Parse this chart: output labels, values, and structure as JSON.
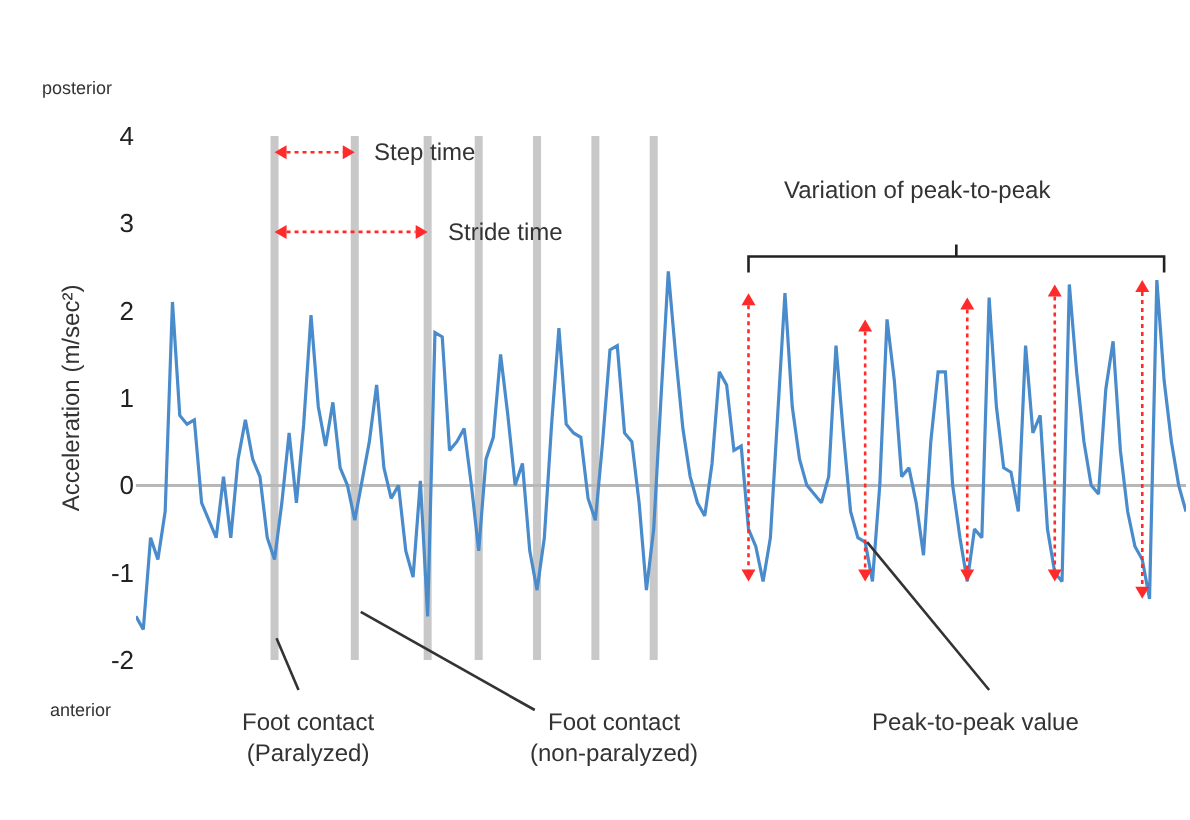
{
  "chart_data": {
    "type": "line",
    "ylabel": "Acceleration (m/sec²)",
    "categories": [
      null,
      null,
      null,
      null,
      null,
      null,
      null,
      null,
      null,
      null,
      null,
      null,
      null,
      null,
      null,
      null,
      null,
      null,
      null,
      null,
      null,
      null,
      null,
      null,
      null,
      null,
      null,
      null,
      null,
      null,
      null,
      null,
      null,
      null,
      null,
      null,
      null,
      null,
      null,
      null,
      null,
      null,
      null,
      null,
      null,
      null,
      null,
      null,
      null,
      null,
      null,
      null,
      null,
      null,
      null,
      null,
      null,
      null,
      null,
      null,
      null,
      null,
      null,
      null,
      null,
      null,
      null,
      null,
      null,
      null,
      null,
      null,
      null,
      null,
      null,
      null,
      null,
      null,
      null,
      null,
      null,
      null,
      null,
      null,
      null,
      null,
      null,
      null,
      null,
      null,
      null,
      null,
      null,
      null,
      null,
      null,
      null,
      null,
      null,
      null,
      null,
      null,
      null,
      null,
      null,
      null,
      null,
      null,
      null,
      null,
      null,
      null,
      null,
      null,
      null,
      null,
      null,
      null,
      null,
      null,
      null,
      null,
      null,
      null,
      null,
      null,
      null,
      null,
      null,
      null,
      null,
      null,
      null,
      null,
      null,
      null,
      null,
      null,
      null,
      null,
      null,
      null,
      null,
      null,
      null
    ],
    "series": [
      {
        "color": "#4a8ccb",
        "values": [
          -1.5,
          -1.65,
          -0.6,
          -0.85,
          -0.3,
          2.1,
          0.8,
          0.7,
          0.75,
          -0.2,
          -0.4,
          -0.6,
          0.1,
          -0.6,
          0.3,
          0.75,
          0.3,
          0.1,
          -0.6,
          -0.85,
          -0.2,
          0.6,
          -0.2,
          0.7,
          1.95,
          0.9,
          0.45,
          0.95,
          0.2,
          0.0,
          -0.4,
          0.05,
          0.5,
          1.15,
          0.2,
          -0.15,
          0.0,
          -0.75,
          -1.05,
          0.05,
          -1.5,
          1.75,
          1.7,
          0.4,
          0.5,
          0.65,
          0.0,
          -0.75,
          0.3,
          0.55,
          1.5,
          0.8,
          0.0,
          0.25,
          -0.75,
          -1.2,
          -0.6,
          0.7,
          1.8,
          0.7,
          0.6,
          0.55,
          -0.15,
          -0.4,
          0.5,
          1.55,
          1.6,
          0.6,
          0.5,
          -0.2,
          -1.2,
          -0.5,
          1.0,
          2.45,
          1.5,
          0.65,
          0.1,
          -0.2,
          -0.35,
          0.25,
          1.3,
          1.15,
          0.4,
          0.45,
          -0.5,
          -0.7,
          -1.1,
          -0.6,
          0.8,
          2.2,
          0.9,
          0.3,
          0.0,
          -0.1,
          -0.2,
          0.1,
          1.6,
          0.6,
          -0.3,
          -0.6,
          -0.65,
          -1.1,
          0.0,
          1.9,
          1.2,
          0.1,
          0.2,
          -0.2,
          -0.8,
          0.5,
          1.3,
          1.3,
          0.0,
          -0.6,
          -1.1,
          -0.5,
          -0.6,
          2.15,
          0.9,
          0.2,
          0.15,
          -0.3,
          1.6,
          0.6,
          0.8,
          -0.5,
          -1.0,
          -1.1,
          2.3,
          1.3,
          0.5,
          0.0,
          -0.1,
          1.1,
          1.65,
          0.4,
          -0.3,
          -0.7,
          -0.85,
          -1.3,
          2.35,
          1.2,
          0.5,
          0.0,
          -0.3
        ]
      }
    ],
    "ylim": [
      -2,
      4
    ],
    "yticks": [
      -2,
      -1,
      0,
      1,
      2,
      3,
      4
    ],
    "grid": false,
    "tick_labels": "y",
    "marker": "none",
    "line_style": "solid",
    "annotations": [
      "posterior",
      "anterior",
      "Step time",
      "Stride time",
      "Variation of peak-to-peak",
      "Foot contact\n(Paralyzed)",
      "Foot contact\n(non-paralyzed)",
      "Peak-to-peak value"
    ]
  }
}
